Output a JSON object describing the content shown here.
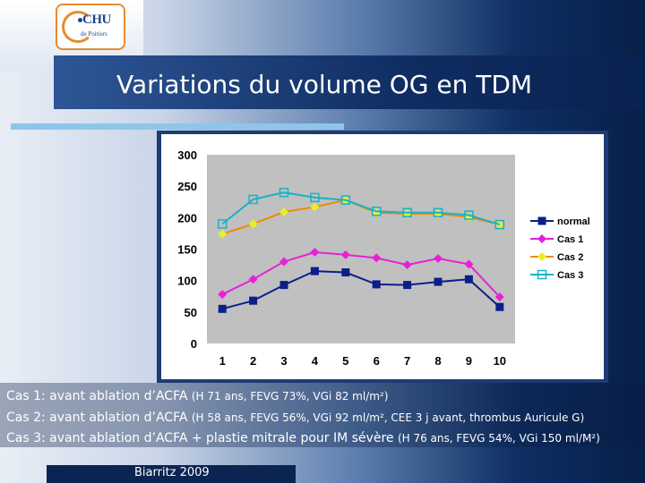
{
  "slide": {
    "title": "Variations du volume OG en TDM",
    "logo_text": "CHU",
    "logo_sub": "de Poitiers",
    "footer": "Biarritz 2009",
    "notes": [
      {
        "lead": "Cas 1: avant ablation d’ACFA ",
        "detail": "(H 71 ans, FEVG 73%, VGi 82 ml/m²)"
      },
      {
        "lead": "Cas 2: avant ablation d’ACFA ",
        "detail": "(H 58 ans, FEVG 56%, VGi 92 ml/m², CEE 3 j avant, thrombus Auricule G)"
      },
      {
        "lead": "Cas 3: avant ablation d’ACFA + plastie mitrale pour IM sévère ",
        "detail": "(H 76 ans, FEVG 54%, VGi 150 ml/M²)"
      }
    ]
  },
  "chart_data": {
    "type": "line",
    "title": "",
    "xlabel": "",
    "ylabel": "",
    "x": [
      "1",
      "2",
      "3",
      "4",
      "5",
      "6",
      "7",
      "8",
      "9",
      "10"
    ],
    "ylim": [
      0,
      300
    ],
    "yticks": [
      0,
      50,
      100,
      150,
      200,
      250,
      300
    ],
    "plot_background": "#c0c0c0",
    "legend_position": "right",
    "series": [
      {
        "name": "normal",
        "color": "#0b1e8a",
        "marker": "square",
        "values": [
          55,
          68,
          93,
          115,
          113,
          94,
          93,
          98,
          102,
          58
        ]
      },
      {
        "name": "Cas 1",
        "color": "#e621d6",
        "marker": "diamond",
        "values": [
          78,
          102,
          130,
          145,
          141,
          136,
          125,
          135,
          126,
          74
        ]
      },
      {
        "name": "Cas 2",
        "color": "#f08a00",
        "marker": "triangle",
        "values": [
          174,
          190,
          209,
          217,
          228,
          208,
          206,
          206,
          201,
          189
        ]
      },
      {
        "name": "Cas 3",
        "color": "#19b2c8",
        "marker": "open-square",
        "values": [
          190,
          229,
          240,
          232,
          228,
          210,
          208,
          208,
          204,
          189
        ]
      }
    ],
    "highlight_marker_color": "#e6f02a"
  }
}
